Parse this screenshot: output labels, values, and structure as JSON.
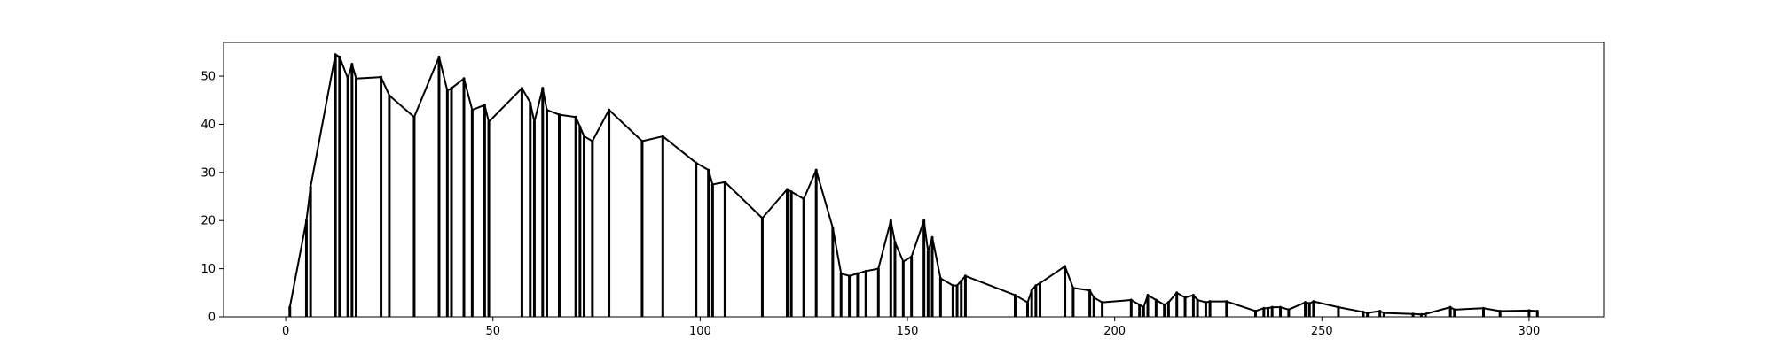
{
  "chart_data": {
    "type": "line",
    "title": "",
    "xlabel": "",
    "ylabel": "",
    "xlim": [
      -15,
      318
    ],
    "ylim": [
      0,
      57
    ],
    "xticks": [
      0,
      50,
      100,
      150,
      200,
      250,
      300
    ],
    "yticks": [
      0,
      10,
      20,
      30,
      40,
      50
    ],
    "grid": false,
    "line_color": "#000000",
    "series": [
      {
        "x": [
          1,
          5,
          6,
          12,
          13,
          15,
          16,
          17,
          23,
          25,
          31,
          37,
          39,
          40,
          43,
          45,
          48,
          49,
          57,
          59,
          60,
          62,
          63,
          66,
          70,
          71,
          72,
          74,
          78,
          86,
          91,
          99,
          102,
          103,
          106,
          115,
          121,
          122,
          125,
          128,
          132,
          134,
          136,
          138,
          140,
          143,
          146,
          147,
          149,
          151,
          154,
          155,
          156,
          158,
          161,
          162,
          163,
          164,
          176,
          179,
          180,
          181,
          182,
          188,
          190,
          194,
          195,
          197,
          204,
          206,
          207,
          208,
          210,
          212,
          213,
          215,
          217,
          219,
          220,
          222,
          223,
          227,
          234,
          236,
          237,
          238,
          240,
          242,
          246,
          247,
          248,
          254,
          260,
          261,
          264,
          265,
          272,
          274,
          275,
          281,
          282,
          289,
          293,
          300,
          302
        ],
        "y": [
          2,
          20,
          27,
          54.5,
          54,
          49.5,
          52.5,
          49.5,
          49.8,
          46,
          41.5,
          54,
          47,
          47.5,
          49.5,
          43,
          44,
          40.5,
          47.5,
          44.5,
          40.5,
          47.5,
          43,
          42,
          41.5,
          39.5,
          37.5,
          36.5,
          43,
          36.5,
          37.5,
          32,
          30.5,
          27.5,
          28,
          20.5,
          26.5,
          26,
          24.5,
          30.5,
          18.5,
          9,
          8.5,
          9,
          9.5,
          10,
          20,
          15.5,
          11.5,
          12.5,
          20,
          13.5,
          16.5,
          8,
          6.5,
          6.5,
          7.5,
          8.5,
          4.5,
          3,
          5.5,
          6.5,
          7,
          10.5,
          6,
          5.5,
          4,
          3,
          3.5,
          2.5,
          2,
          4.5,
          3.5,
          2.5,
          3,
          5,
          4,
          4.5,
          3.5,
          3,
          3.2,
          3.2,
          1.2,
          1.8,
          1.8,
          2,
          2,
          1.5,
          3,
          2.8,
          3.2,
          2,
          1,
          0.8,
          1.2,
          0.8,
          0.6,
          0.5,
          0.6,
          2,
          1.5,
          1.8,
          1.2,
          1.3,
          1.2
        ]
      }
    ]
  }
}
